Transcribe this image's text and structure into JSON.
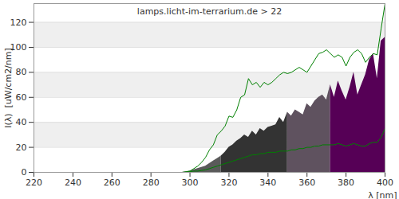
{
  "chart_data": {
    "type": "area",
    "title": "lamps.licht-im-terrarium.de > 22",
    "x_label": "λ [nm]",
    "y_label": "I(λ)  [uW/cm2/nm]",
    "x": [
      296,
      298,
      300,
      302,
      304,
      306,
      308,
      310,
      312,
      314,
      316,
      318,
      320,
      322,
      324,
      326,
      328,
      330,
      332,
      334,
      336,
      338,
      340,
      342,
      344,
      346,
      348,
      350,
      352,
      354,
      356,
      358,
      360,
      362,
      364,
      366,
      368,
      370,
      372,
      374,
      376,
      378,
      380,
      382,
      384,
      386,
      388,
      390,
      392,
      394,
      396,
      398,
      400
    ],
    "series": [
      {
        "type": "area",
        "color": "#5a5a5a",
        "values": [
          0,
          0.5,
          1,
          2,
          3,
          4,
          5,
          7,
          9,
          11,
          13,
          null,
          null,
          null,
          null,
          null,
          null,
          null,
          null,
          null,
          null,
          null,
          null,
          null,
          null,
          null,
          null,
          null,
          null,
          null,
          null,
          null,
          null,
          null,
          null,
          null,
          null,
          null,
          null,
          null,
          null,
          null,
          null,
          null,
          null,
          null,
          null,
          null,
          null,
          null,
          null,
          null,
          null
        ]
      },
      {
        "type": "area",
        "color": "#333333",
        "values": [
          null,
          null,
          null,
          null,
          null,
          null,
          null,
          null,
          null,
          null,
          13,
          16,
          20,
          22,
          25,
          27,
          30,
          28,
          33,
          30,
          35,
          33,
          36,
          37,
          38,
          44,
          40,
          48,
          null,
          null,
          null,
          null,
          null,
          null,
          null,
          null,
          null,
          null,
          null,
          null,
          null,
          null,
          null,
          null,
          null,
          null,
          null,
          null,
          null,
          null,
          null,
          null,
          null
        ]
      },
      {
        "type": "area",
        "color": "#5f525f",
        "values": [
          null,
          null,
          null,
          null,
          null,
          null,
          null,
          null,
          null,
          null,
          null,
          null,
          null,
          null,
          null,
          null,
          null,
          null,
          null,
          null,
          null,
          null,
          null,
          null,
          null,
          null,
          null,
          48,
          45,
          50,
          48,
          46,
          55,
          52,
          57,
          60,
          62,
          58,
          70,
          null,
          null,
          null,
          null,
          null,
          null,
          null,
          null,
          null,
          null,
          null,
          null,
          null,
          null
        ]
      },
      {
        "type": "area",
        "color": "#560056",
        "values": [
          null,
          null,
          null,
          null,
          null,
          null,
          null,
          null,
          null,
          null,
          null,
          null,
          null,
          null,
          null,
          null,
          null,
          null,
          null,
          null,
          null,
          null,
          null,
          null,
          null,
          null,
          null,
          null,
          null,
          null,
          null,
          null,
          null,
          null,
          null,
          null,
          null,
          null,
          70,
          60,
          73,
          65,
          58,
          68,
          80,
          62,
          70,
          78,
          90,
          95,
          75,
          105,
          108
        ]
      },
      {
        "type": "line",
        "color": "#008000",
        "values": [
          0,
          0.5,
          1,
          3,
          5,
          8,
          12,
          18,
          22,
          30,
          33,
          37,
          45,
          44,
          50,
          60,
          62,
          75,
          70,
          72,
          68,
          72,
          70,
          72,
          75,
          78,
          80,
          79,
          80,
          82,
          84,
          82,
          80,
          85,
          90,
          95,
          96,
          98,
          95,
          92,
          94,
          92,
          85,
          92,
          96,
          98,
          95,
          88,
          92,
          95,
          94,
          115,
          135
        ]
      },
      {
        "type": "line",
        "color": "#008000",
        "values": [
          0,
          0,
          0.5,
          1,
          1,
          1.5,
          2,
          3,
          4,
          5,
          6,
          7,
          8,
          9,
          10,
          11,
          12,
          13,
          14,
          14,
          15,
          15,
          16,
          16,
          16,
          17,
          17,
          17,
          18,
          18,
          19,
          19,
          20,
          20,
          21,
          21,
          22,
          22,
          22,
          22,
          23,
          22,
          21,
          22,
          23,
          22,
          21,
          21,
          23,
          24,
          24,
          28,
          35
        ]
      }
    ],
    "xlim": [
      220,
      400
    ],
    "xticks": [
      220,
      240,
      260,
      280,
      300,
      320,
      340,
      360,
      380,
      400
    ],
    "ylim": [
      0,
      135
    ],
    "yticks": [
      0,
      20,
      40,
      60,
      80,
      100,
      120
    ],
    "grid": true
  }
}
